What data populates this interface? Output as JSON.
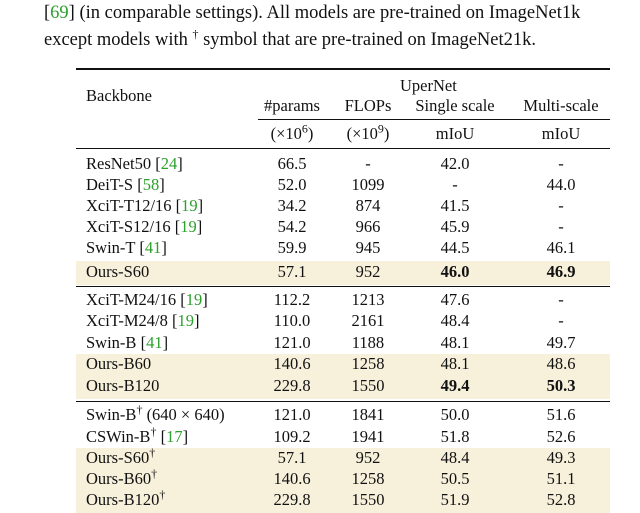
{
  "intro": {
    "line1_cite": "69",
    "line1_text": " (in comparable settings). All models are pre-trained on ImageNet1k",
    "line2_text_a": "except models with ",
    "line2_dagger": "†",
    "line2_text_b": " symbol that are pre-trained on ImageNet21k."
  },
  "table": {
    "header": {
      "backbone": "Backbone",
      "upernet": "UperNet",
      "params": "#params",
      "flops": "FLOPs",
      "single": "Single scale",
      "multi": "Multi-scale",
      "params_unit_pre": "(×10",
      "params_unit_exp": "6",
      "params_unit_post": ")",
      "flops_unit_pre": "(×10",
      "flops_unit_exp": "9",
      "flops_unit_post": ")",
      "miou_single": "mIoU",
      "miou_multi": "mIoU"
    },
    "rows": [
      {
        "name": "ResNet50 ",
        "cite": "24",
        "params": "66.5",
        "flops": "-",
        "single": "42.0",
        "multi": "-"
      },
      {
        "name": "DeiT-S ",
        "cite": "58",
        "params": "52.0",
        "flops": "1099",
        "single": "-",
        "multi": "44.0"
      },
      {
        "name": "XciT-T12/16 ",
        "cite": "19",
        "params": "34.2",
        "flops": "874",
        "single": "41.5",
        "multi": "-"
      },
      {
        "name": "XciT-S12/16 ",
        "cite": "19",
        "params": "54.2",
        "flops": "966",
        "single": "45.9",
        "multi": "-"
      },
      {
        "name": "Swin-T ",
        "cite": "41",
        "params": "59.9",
        "flops": "945",
        "single": "44.5",
        "multi": "46.1"
      },
      {
        "name": "Ours-S60",
        "cite": "",
        "params": "57.1",
        "flops": "952",
        "single": "46.0",
        "multi": "46.9"
      },
      {
        "name": "XciT-M24/16 ",
        "cite": "19",
        "params": "112.2",
        "flops": "1213",
        "single": "47.6",
        "multi": "-"
      },
      {
        "name": "XciT-M24/8 ",
        "cite": "19",
        "params": "110.0",
        "flops": "2161",
        "single": "48.4",
        "multi": "-"
      },
      {
        "name": "Swin-B ",
        "cite": "41",
        "params": "121.0",
        "flops": "1188",
        "single": "48.1",
        "multi": "49.7"
      },
      {
        "name": "Ours-B60",
        "cite": "",
        "params": "140.6",
        "flops": "1258",
        "single": "48.1",
        "multi": "48.6"
      },
      {
        "name": "Ours-B120",
        "cite": "",
        "params": "229.8",
        "flops": "1550",
        "single": "49.4",
        "multi": "50.3"
      },
      {
        "name": "Swin-B",
        "dagger": "†",
        "suffix": " (640 × 640)",
        "cite": "",
        "params": "121.0",
        "flops": "1841",
        "single": "50.0",
        "multi": "51.6"
      },
      {
        "name": "CSWin-B",
        "dagger": "†",
        "suffix": " ",
        "cite": "17",
        "params": "109.2",
        "flops": "1941",
        "single": "51.8",
        "multi": "52.6"
      },
      {
        "name": "Ours-S60",
        "dagger": "†",
        "suffix": "",
        "cite": "",
        "params": "57.1",
        "flops": "952",
        "single": "48.4",
        "multi": "49.3"
      },
      {
        "name": "Ours-B60",
        "dagger": "†",
        "suffix": "",
        "cite": "",
        "params": "140.6",
        "flops": "1258",
        "single": "50.5",
        "multi": "51.1"
      },
      {
        "name": "Ours-B120",
        "dagger": "†",
        "suffix": "",
        "cite": "",
        "params": "229.8",
        "flops": "1550",
        "single": "51.9",
        "multi": "52.8"
      }
    ]
  }
}
